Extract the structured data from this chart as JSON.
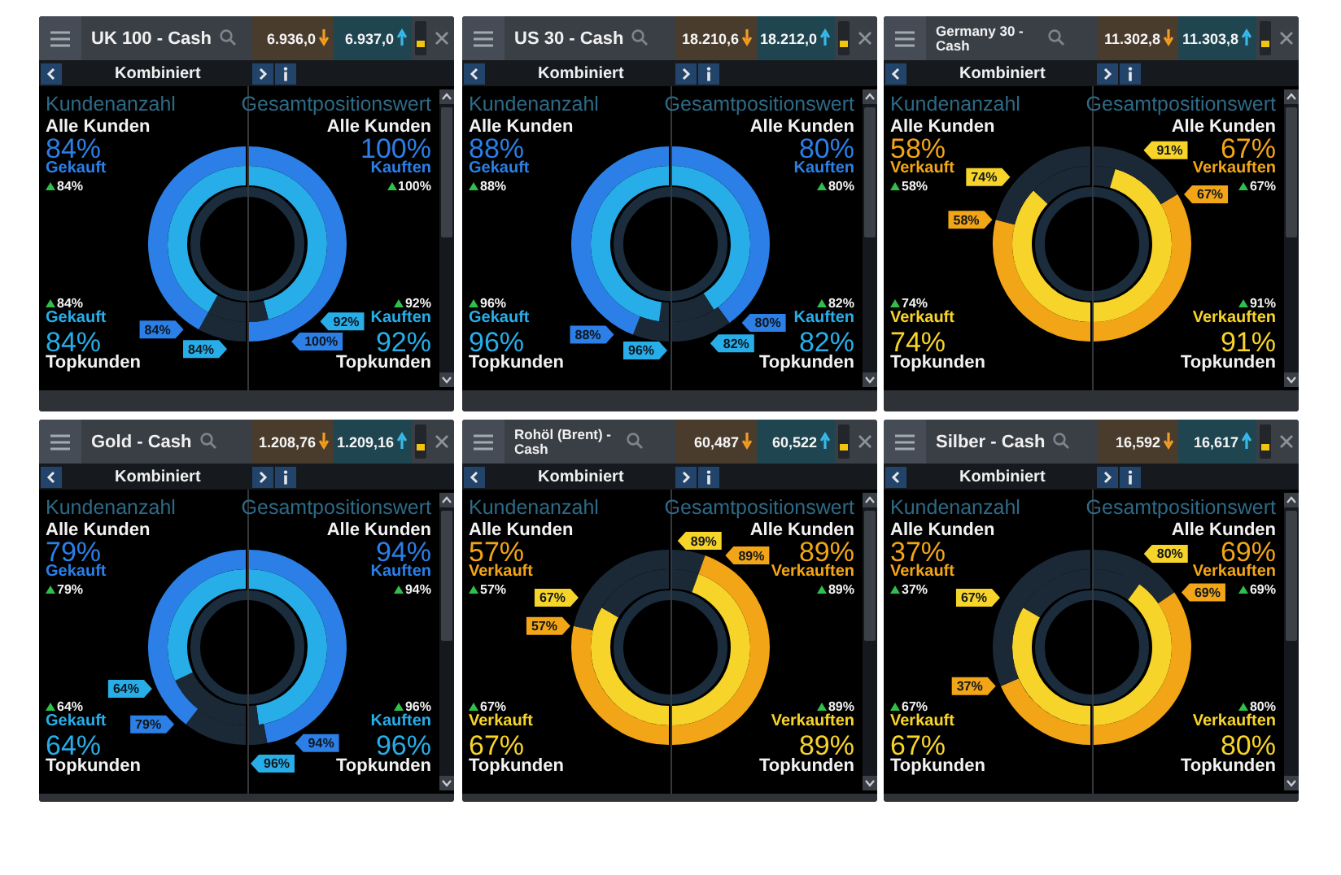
{
  "chart_data": [
    {
      "type": "other",
      "title": "UK 100 - Cash",
      "annotations": [
        "6.936,0",
        "6.937,0",
        "Kombiniert"
      ]
    },
    {
      "type": "donut",
      "title": "Kundenanzahl",
      "annotations": [
        "Alle Kunden",
        "Topkunden"
      ],
      "categories": [
        null,
        "Gekauft"
      ],
      "series": [
        {
          "values": [
            16,
            84
          ],
          "colors": [
            "#1b2937",
            "#2b7fe6"
          ],
          "value_labels": [
            null,
            "84%"
          ]
        },
        {
          "values": [
            16,
            84
          ],
          "colors": [
            "#1b2937",
            "#27aee8"
          ],
          "value_labels": [
            null,
            "84%"
          ]
        }
      ]
    },
    {
      "type": "donut",
      "title": "Gesamtpositionswert",
      "annotations": [
        "Alle Kunden",
        "Topkunden"
      ],
      "categories": [
        "Kauften",
        null
      ],
      "series": [
        {
          "values": [
            100,
            null
          ],
          "colors": [
            "#2b7fe6",
            "#1b2937"
          ],
          "value_labels": [
            "100%",
            null
          ]
        },
        {
          "values": [
            92,
            8
          ],
          "colors": [
            "#27aee8",
            "#1b2937"
          ],
          "value_labels": [
            "92%",
            null
          ]
        }
      ]
    },
    {
      "type": "other",
      "title": "US 30 - Cash",
      "annotations": [
        "18.210,6",
        "18.212,0",
        "Kombiniert"
      ]
    },
    {
      "type": "donut",
      "title": "Kundenanzahl",
      "annotations": [
        "Alle Kunden",
        "Topkunden"
      ],
      "categories": [
        null,
        "Gekauft"
      ],
      "series": [
        {
          "values": [
            12,
            88
          ],
          "colors": [
            "#1b2937",
            "#2b7fe6"
          ],
          "value_labels": [
            null,
            "88%"
          ]
        },
        {
          "values": [
            4,
            96
          ],
          "colors": [
            "#1b2937",
            "#27aee8"
          ],
          "value_labels": [
            null,
            "96%"
          ]
        }
      ]
    },
    {
      "type": "donut",
      "title": "Gesamtpositionswert",
      "annotations": [
        "Alle Kunden",
        "Topkunden"
      ],
      "categories": [
        "Kauften",
        null
      ],
      "series": [
        {
          "values": [
            80,
            20
          ],
          "colors": [
            "#2b7fe6",
            "#1b2937"
          ],
          "value_labels": [
            "80%",
            null
          ]
        },
        {
          "values": [
            82,
            18
          ],
          "colors": [
            "#27aee8",
            "#1b2937"
          ],
          "value_labels": [
            "82%",
            null
          ]
        }
      ]
    },
    {
      "type": "other",
      "title": "Germany 30 - Cash",
      "annotations": [
        "11.302,8",
        "11.303,8",
        "Kombiniert"
      ]
    },
    {
      "type": "donut",
      "title": "Kundenanzahl",
      "annotations": [
        "Alle Kunden",
        "Topkunden"
      ],
      "categories": [
        "Verkauft",
        null
      ],
      "series": [
        {
          "values": [
            58,
            42
          ],
          "colors": [
            "#f2a516",
            "#1b2937"
          ],
          "value_labels": [
            "58%",
            null
          ]
        },
        {
          "values": [
            74,
            26
          ],
          "colors": [
            "#f7d42a",
            "#1b2937"
          ],
          "value_labels": [
            "74%",
            null
          ]
        }
      ]
    },
    {
      "type": "donut",
      "title": "Gesamtpositionswert",
      "annotations": [
        "Alle Kunden",
        "Topkunden"
      ],
      "categories": [
        null,
        "Verkauften"
      ],
      "series": [
        {
          "values": [
            33,
            67
          ],
          "colors": [
            "#1b2937",
            "#f2a516"
          ],
          "value_labels": [
            null,
            "67%"
          ]
        },
        {
          "values": [
            9,
            91
          ],
          "colors": [
            "#1b2937",
            "#f7d42a"
          ],
          "value_labels": [
            null,
            "91%"
          ]
        }
      ]
    },
    {
      "type": "other",
      "title": "Gold - Cash",
      "annotations": [
        "1.208,76",
        "1.209,16",
        "Kombiniert"
      ]
    },
    {
      "type": "donut",
      "title": "Kundenanzahl",
      "annotations": [
        "Alle Kunden",
        "Topkunden"
      ],
      "categories": [
        null,
        "Gekauft"
      ],
      "series": [
        {
          "values": [
            21,
            79
          ],
          "colors": [
            "#1b2937",
            "#2b7fe6"
          ],
          "value_labels": [
            null,
            "79%"
          ]
        },
        {
          "values": [
            36,
            64
          ],
          "colors": [
            "#1b2937",
            "#27aee8"
          ],
          "value_labels": [
            null,
            "64%"
          ]
        }
      ]
    },
    {
      "type": "donut",
      "title": "Gesamtpositionswert",
      "annotations": [
        "Alle Kunden",
        "Topkunden"
      ],
      "categories": [
        "Kauften",
        null
      ],
      "series": [
        {
          "values": [
            94,
            6
          ],
          "colors": [
            "#2b7fe6",
            "#1b2937"
          ],
          "value_labels": [
            "94%",
            null
          ]
        },
        {
          "values": [
            96,
            4
          ],
          "colors": [
            "#27aee8",
            "#1b2937"
          ],
          "value_labels": [
            "96%",
            null
          ]
        }
      ]
    },
    {
      "type": "other",
      "title": "Rohöl (Brent) - Cash",
      "annotations": [
        "60,487",
        "60,522",
        "Kombiniert"
      ]
    },
    {
      "type": "donut",
      "title": "Kundenanzahl",
      "annotations": [
        "Alle Kunden",
        "Topkunden"
      ],
      "categories": [
        "Verkauft",
        null
      ],
      "series": [
        {
          "values": [
            57,
            43
          ],
          "colors": [
            "#f2a516",
            "#1b2937"
          ],
          "value_labels": [
            "57%",
            null
          ]
        },
        {
          "values": [
            67,
            33
          ],
          "colors": [
            "#f7d42a",
            "#1b2937"
          ],
          "value_labels": [
            "67%",
            null
          ]
        }
      ]
    },
    {
      "type": "donut",
      "title": "Gesamtpositionswert",
      "annotations": [
        "Alle Kunden",
        "Topkunden"
      ],
      "categories": [
        null,
        "Verkauften"
      ],
      "series": [
        {
          "values": [
            11,
            89
          ],
          "colors": [
            "#1b2937",
            "#f2a516"
          ],
          "value_labels": [
            null,
            "89%"
          ]
        },
        {
          "values": [
            11,
            89
          ],
          "colors": [
            "#1b2937",
            "#f7d42a"
          ],
          "value_labels": [
            null,
            "89%"
          ]
        }
      ]
    },
    {
      "type": "other",
      "title": "Silber - Cash",
      "annotations": [
        "16,592",
        "16,617",
        "Kombiniert"
      ]
    },
    {
      "type": "donut",
      "title": "Kundenanzahl",
      "annotations": [
        "Alle Kunden",
        "Topkunden"
      ],
      "categories": [
        "Verkauft",
        null
      ],
      "series": [
        {
          "values": [
            37,
            63
          ],
          "colors": [
            "#f2a516",
            "#1b2937"
          ],
          "value_labels": [
            "37%",
            null
          ]
        },
        {
          "values": [
            67,
            33
          ],
          "colors": [
            "#f7d42a",
            "#1b2937"
          ],
          "value_labels": [
            "67%",
            null
          ]
        }
      ]
    },
    {
      "type": "donut",
      "title": "Gesamtpositionswert",
      "annotations": [
        "Alle Kunden",
        "Topkunden"
      ],
      "categories": [
        null,
        "Verkauften"
      ],
      "series": [
        {
          "values": [
            31,
            69
          ],
          "colors": [
            "#1b2937",
            "#f2a516"
          ],
          "value_labels": [
            null,
            "69%"
          ]
        },
        {
          "values": [
            20,
            80
          ],
          "colors": [
            "#1b2937",
            "#f7d42a"
          ],
          "value_labels": [
            null,
            "80%"
          ]
        }
      ]
    }
  ]
}
